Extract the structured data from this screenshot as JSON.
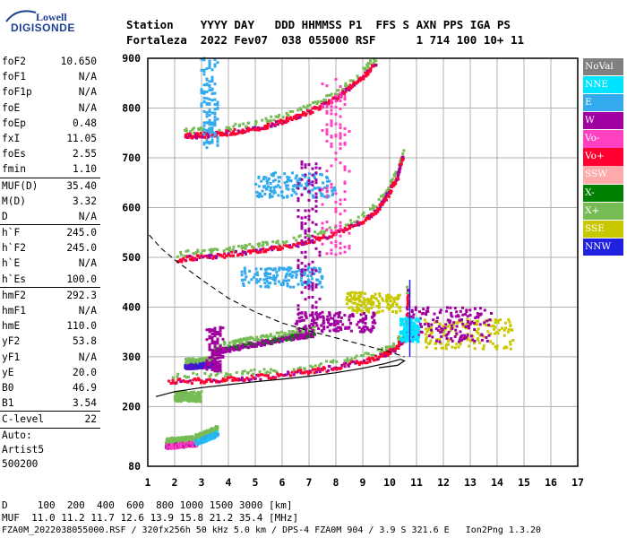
{
  "logo": {
    "top": "Lowell",
    "bottom": "DIGISONDE"
  },
  "header": {
    "line1": "Station    YYYY DAY   DDD HHMMSS P1  FFS S AXN PPS IGA PS",
    "line2": "Fortaleza  2022 Fev07  038 055000 RSF      1 714 100 10+ 11"
  },
  "params": {
    "group1": [
      {
        "label": "foF2",
        "value": "10.650"
      },
      {
        "label": "foF1",
        "value": "N/A"
      },
      {
        "label": "foF1p",
        "value": "N/A"
      },
      {
        "label": "foE",
        "value": "N/A"
      },
      {
        "label": "foEp",
        "value": "0.48"
      },
      {
        "label": "fxI",
        "value": "11.05"
      },
      {
        "label": "foEs",
        "value": "2.55"
      },
      {
        "label": "fmin",
        "value": "1.10"
      }
    ],
    "group2": [
      {
        "label": "MUF(D)",
        "value": "35.40"
      },
      {
        "label": "M(D)",
        "value": "3.32"
      },
      {
        "label": "D",
        "value": "N/A"
      }
    ],
    "group3": [
      {
        "label": "h`F",
        "value": "245.0"
      },
      {
        "label": "h`F2",
        "value": "245.0"
      },
      {
        "label": "h`E",
        "value": "N/A"
      },
      {
        "label": "h`Es",
        "value": "100.0"
      }
    ],
    "group4": [
      {
        "label": "hmF2",
        "value": "292.3"
      },
      {
        "label": "hmF1",
        "value": "N/A"
      },
      {
        "label": "hmE",
        "value": "110.0"
      },
      {
        "label": "yF2",
        "value": "53.8"
      },
      {
        "label": "yF1",
        "value": "N/A"
      },
      {
        "label": "yE",
        "value": "20.0"
      },
      {
        "label": "B0",
        "value": "46.9"
      },
      {
        "label": "B1",
        "value": "3.54"
      }
    ],
    "group5": [
      {
        "label": "C-level",
        "value": "22"
      }
    ],
    "auto": [
      "Auto:",
      "Artist5",
      "500200"
    ]
  },
  "legend": [
    {
      "label": "NoVal",
      "color": "#808080"
    },
    {
      "label": "NNE",
      "color": "#00e5ff"
    },
    {
      "label": "E",
      "color": "#33aaee"
    },
    {
      "label": "W",
      "color": "#a000a0"
    },
    {
      "label": "Vo-",
      "color": "#ff40c0"
    },
    {
      "label": "Vo+",
      "color": "#ff0030"
    },
    {
      "label": "SSW",
      "color": "#ffaaaa"
    },
    {
      "label": "X-",
      "color": "#008000"
    },
    {
      "label": "X+",
      "color": "#77bb55"
    },
    {
      "label": "SSE",
      "color": "#c8c800"
    },
    {
      "label": "NNW",
      "color": "#2020e0"
    }
  ],
  "footer": {
    "line1": "D     100  200  400  600  800 1000 1500 3000 [km]",
    "line2": "MUF  11.0 11.2 11.7 12.6 13.9 15.8 21.2 35.4 [MHz]",
    "line3": "FZA0M_2022038055000.RSF / 320fx256h 50 kHz 5.0 km / DPS-4 FZA0M 904 / 3.9 S 321.6 E   Ion2Png 1.3.20"
  },
  "chart_data": {
    "type": "scatter",
    "xlim": [
      1,
      17
    ],
    "ylim": [
      80,
      900
    ],
    "xticks": [
      1,
      2,
      3,
      4,
      5,
      6,
      7,
      8,
      9,
      10,
      11,
      12,
      13,
      14,
      15,
      16,
      17
    ],
    "yticks": [
      80,
      200,
      300,
      400,
      500,
      600,
      700,
      800,
      900
    ],
    "grid": true,
    "legend_position": "right",
    "trace_bands": [
      {
        "color": "#ff0030",
        "alt": "#a000a0",
        "points": [
          [
            1.8,
            250
          ],
          [
            3,
            252
          ],
          [
            4,
            254
          ],
          [
            5,
            258
          ],
          [
            6,
            264
          ],
          [
            7,
            270
          ],
          [
            8,
            278
          ],
          [
            9,
            290
          ],
          [
            9.8,
            303
          ],
          [
            10.2,
            315
          ],
          [
            10.5,
            332
          ],
          [
            10.65,
            360
          ],
          [
            10.7,
            430
          ]
        ]
      },
      {
        "color": "#ff0030",
        "alt": "#a000a0",
        "points": [
          [
            2.1,
            495
          ],
          [
            3,
            500
          ],
          [
            4,
            505
          ],
          [
            5,
            512
          ],
          [
            6,
            520
          ],
          [
            7,
            532
          ],
          [
            8,
            548
          ],
          [
            9,
            572
          ],
          [
            9.6,
            598
          ],
          [
            10,
            630
          ],
          [
            10.3,
            660
          ],
          [
            10.5,
            700
          ]
        ]
      },
      {
        "color": "#ff0030",
        "alt": "#a000a0",
        "points": [
          [
            2.4,
            743
          ],
          [
            3,
            745
          ],
          [
            4,
            750
          ],
          [
            5,
            758
          ],
          [
            6,
            772
          ],
          [
            7,
            792
          ],
          [
            8,
            818
          ],
          [
            8.8,
            852
          ],
          [
            9.5,
            890
          ]
        ]
      },
      {
        "color": "#2020e0",
        "alt": "#a000a0",
        "points": [
          [
            2.4,
            280
          ],
          [
            3,
            282
          ],
          [
            3.5,
            284
          ]
        ]
      },
      {
        "color": "#a000a0",
        "alt": "#008000",
        "points": [
          [
            3.5,
            310
          ],
          [
            4.5,
            320
          ],
          [
            5.5,
            330
          ],
          [
            6.5,
            340
          ],
          [
            7.2,
            345
          ]
        ]
      },
      {
        "color": "#ff40c0",
        "alt": "#a000a0",
        "points": [
          [
            1.7,
            120
          ],
          [
            2.2,
            122
          ],
          [
            2.8,
            125
          ]
        ]
      },
      {
        "color": "#33aaee",
        "alt": "#00e5ff",
        "points": [
          [
            2.8,
            128
          ],
          [
            3.2,
            136
          ],
          [
            3.6,
            145
          ]
        ]
      }
    ],
    "spread_clusters": [
      {
        "color": "#c8c800",
        "x": [
          11.3,
          14.6
        ],
        "y": [
          315,
          375
        ]
      },
      {
        "color": "#a000a0",
        "x": [
          10.8,
          13.8
        ],
        "y": [
          330,
          400
        ]
      },
      {
        "color": "#00e5ff",
        "x": [
          10.4,
          11.1
        ],
        "y": [
          330,
          380
        ]
      },
      {
        "color": "#c8c800",
        "x": [
          8.4,
          10.4
        ],
        "y": [
          385,
          430
        ]
      },
      {
        "color": "#33aaee",
        "x": [
          5,
          8
        ],
        "y": [
          620,
          670
        ]
      },
      {
        "color": "#33aaee",
        "x": [
          4.5,
          7.5
        ],
        "y": [
          440,
          480
        ]
      },
      {
        "color": "#77bb55",
        "x": [
          2,
          3
        ],
        "y": [
          210,
          230
        ]
      },
      {
        "color": "#a000a0",
        "x": [
          6.5,
          9.5
        ],
        "y": [
          350,
          390
        ]
      }
    ],
    "vertical_streaks": [
      {
        "color": "#a000a0",
        "x": [
          6.6,
          7.4
        ],
        "y": [
          380,
          700
        ]
      },
      {
        "color": "#ff40c0",
        "x": [
          7.5,
          8.5
        ],
        "y": [
          500,
          860
        ]
      },
      {
        "color": "#a000a0",
        "x": [
          3.2,
          3.8
        ],
        "y": [
          270,
          360
        ]
      },
      {
        "color": "#33aaee",
        "x": [
          3,
          3.6
        ],
        "y": [
          720,
          900
        ]
      }
    ],
    "profile_solid": [
      [
        1.3,
        220
      ],
      [
        2,
        230
      ],
      [
        3,
        238
      ],
      [
        4,
        244
      ],
      [
        5,
        250
      ],
      [
        6,
        255
      ],
      [
        7,
        261
      ],
      [
        8,
        268
      ],
      [
        9,
        277
      ],
      [
        9.8,
        286
      ],
      [
        10.4,
        295
      ],
      [
        10.55,
        292
      ],
      [
        10.3,
        283
      ],
      [
        9.6,
        278
      ]
    ],
    "profile_dashed": [
      [
        1.05,
        545
      ],
      [
        1.5,
        518
      ],
      [
        2,
        495
      ],
      [
        3,
        455
      ],
      [
        4,
        418
      ],
      [
        5,
        390
      ],
      [
        6,
        368
      ],
      [
        7,
        352
      ],
      [
        8,
        338
      ],
      [
        9,
        324
      ],
      [
        10,
        310
      ],
      [
        10.55,
        300
      ]
    ],
    "vertical_trace": {
      "color": "#2020e0",
      "x": 10.75,
      "y": [
        300,
        455
      ]
    }
  }
}
